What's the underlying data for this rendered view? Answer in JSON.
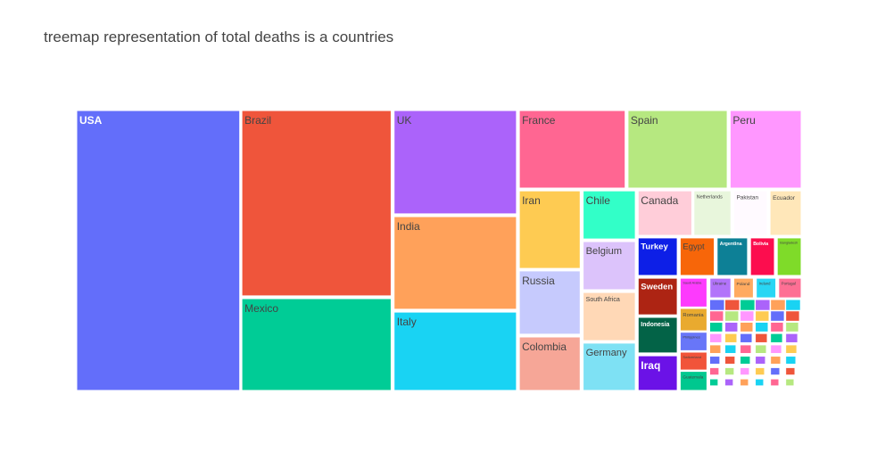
{
  "chart_data": {
    "type": "treemap",
    "title": "treemap representation of total deaths is a countries",
    "metric": "total deaths",
    "tiles": [
      {
        "label": "USA",
        "value": 162000,
        "color": "#636efa"
      },
      {
        "label": "Brazil",
        "value": 98000,
        "color": "#ef553b"
      },
      {
        "label": "Mexico",
        "value": 50500,
        "color": "#00cc96"
      },
      {
        "label": "UK",
        "value": 46500,
        "color": "#ab63fa"
      },
      {
        "label": "India",
        "value": 41600,
        "color": "#ffa15a"
      },
      {
        "label": "Italy",
        "value": 35200,
        "color": "#19d3f3"
      },
      {
        "label": "France",
        "value": 30300,
        "color": "#ff6692"
      },
      {
        "label": "Spain",
        "value": 28500,
        "color": "#b6e880"
      },
      {
        "label": "Peru",
        "value": 20400,
        "color": "#ff97ff"
      },
      {
        "label": "Iran",
        "value": 17600,
        "color": "#fecb52"
      },
      {
        "label": "Russia",
        "value": 14600,
        "color": "#c6cafd"
      },
      {
        "label": "Colombia",
        "value": 11300,
        "color": "#f6a697"
      },
      {
        "label": "Chile",
        "value": 10000,
        "color": "#32ffc8"
      },
      {
        "label": "Belgium",
        "value": 9800,
        "color": "#dcc3fb"
      },
      {
        "label": "South Africa",
        "value": 9600,
        "color": "#ffd8b6"
      },
      {
        "label": "Germany",
        "value": 9200,
        "color": "#7ee1f4"
      },
      {
        "label": "Canada",
        "value": 8970,
        "color": "#ffcdd9"
      },
      {
        "label": "Netherlands",
        "value": 6150,
        "color": "#e8f6dc"
      },
      {
        "label": "Pakistan",
        "value": 6000,
        "color": "#fffaff"
      },
      {
        "label": "Ecuador",
        "value": 5900,
        "color": "#ffe7b9"
      },
      {
        "label": "Turkey",
        "value": 5800,
        "color": "#0d1fe7"
      },
      {
        "label": "Sweden",
        "value": 5760,
        "color": "#ad2413"
      },
      {
        "label": "Indonesia",
        "value": 5390,
        "color": "#036347"
      },
      {
        "label": "Iraq",
        "value": 4900,
        "color": "#6b12e7"
      },
      {
        "label": "Egypt",
        "value": 4950,
        "color": "#f76609"
      },
      {
        "label": "Argentina",
        "value": 4400,
        "color": "#0d8096"
      },
      {
        "label": "Bolivia",
        "value": 3710,
        "color": "#fc0d4e"
      },
      {
        "label": "Bangladesh",
        "value": 3300,
        "color": "#7fdb29"
      },
      {
        "label": "Saudi Arabia",
        "value": 3200,
        "color": "#fd3afd"
      },
      {
        "label": "Ukraine",
        "value": 1900,
        "color": "#b273fa"
      },
      {
        "label": "Poland",
        "value": 1790,
        "color": "#ffaa60"
      },
      {
        "label": "Ireland",
        "value": 1770,
        "color": "#28d6f4"
      },
      {
        "label": "Portugal",
        "value": 1740,
        "color": "#fe6f94"
      },
      {
        "label": "Romania",
        "value": 2400,
        "color": "#e9aa2f"
      },
      {
        "label": "Philippines",
        "value": 2100,
        "color": "#6876f8"
      },
      {
        "label": "Switzerland",
        "value": 1990,
        "color": "#f1543a"
      },
      {
        "label": "Guatemala",
        "value": 1900,
        "color": "#00c88f"
      }
    ]
  }
}
